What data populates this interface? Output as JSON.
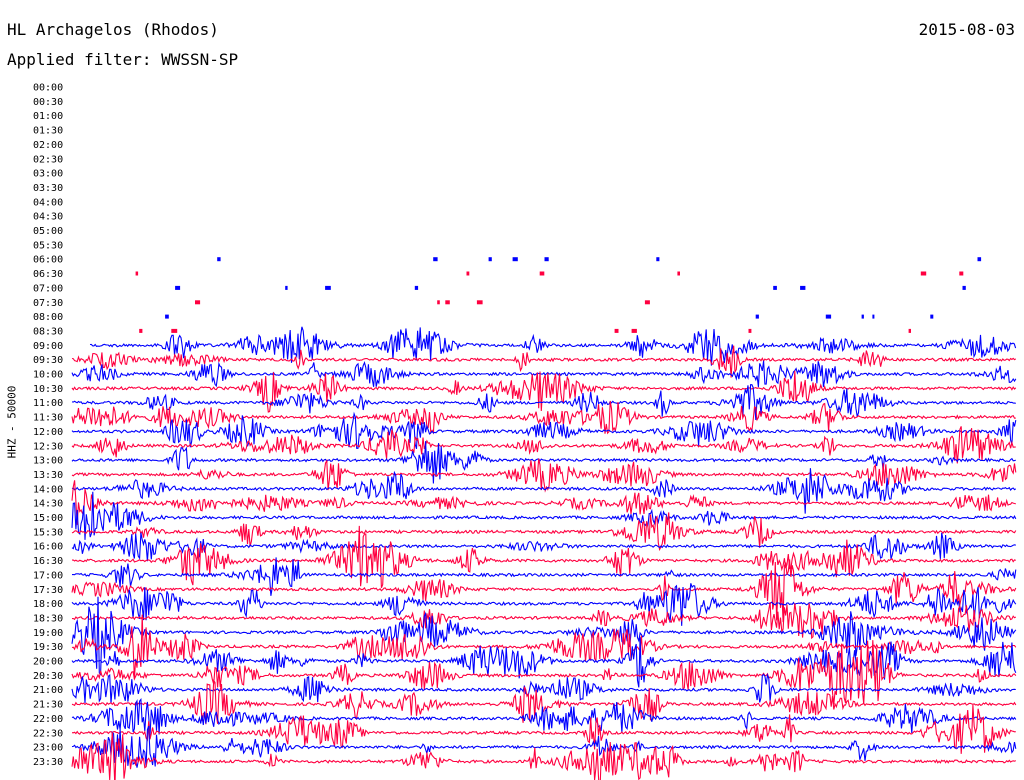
{
  "header": {
    "station": "HL Archagelos (Rhodos)",
    "date": "2015-08-03",
    "filter": "Applied filter: WWSSN-SP"
  },
  "ylabel": "HHZ - 50000",
  "colors": {
    "trace_a": "#0000ff",
    "trace_b": "#ff0040",
    "text": "#000000"
  },
  "chart_data": {
    "type": "line",
    "title": "HL Archagelos (Rhodos)",
    "subtitle": "Applied filter: WWSSN-SP",
    "date": "2015-08-03",
    "ylabel": "HHZ - 50000",
    "grid": false,
    "row_labels": [
      "00:00",
      "00:30",
      "01:00",
      "01:30",
      "02:00",
      "02:30",
      "03:00",
      "03:30",
      "04:00",
      "04:30",
      "05:00",
      "05:30",
      "06:00",
      "06:30",
      "07:00",
      "07:30",
      "08:00",
      "08:30",
      "09:00",
      "09:30",
      "10:00",
      "10:30",
      "11:00",
      "11:30",
      "12:00",
      "12:30",
      "13:00",
      "13:30",
      "14:00",
      "14:30",
      "15:00",
      "15:30",
      "16:00",
      "16:30",
      "17:00",
      "17:30",
      "18:00",
      "18:30",
      "19:00",
      "19:30",
      "20:00",
      "20:30",
      "21:00",
      "21:30",
      "22:00",
      "22:30",
      "23:00",
      "23:30"
    ],
    "trace_colors": [
      "#0000ff",
      "#ff0040"
    ],
    "first_full_trace_row": "09:00",
    "sparse_rows": [
      "06:00",
      "06:30",
      "07:00",
      "07:30",
      "08:00",
      "08:30"
    ]
  }
}
